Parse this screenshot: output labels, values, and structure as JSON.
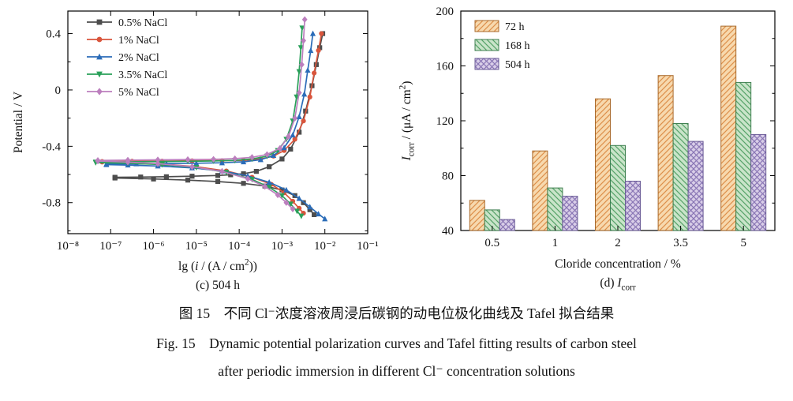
{
  "figure": {
    "caption_zh": "图 15　不同 Cl⁻浓度溶液周浸后碳钢的动电位极化曲线及 Tafel 拟合结果",
    "caption_en_line1": "Fig. 15　Dynamic potential polarization curves and Tafel fitting results of carbon steel",
    "caption_en_line2": "after periodic immersion in different Cl⁻ concentration solutions"
  },
  "chart_data": [
    {
      "id": "polarization",
      "type": "line",
      "title": "(c) 504 h",
      "ylabel": "Potential / V",
      "xlabel_segments": [
        {
          "t": "lg ("
        },
        {
          "t": "i",
          "i": true
        },
        {
          "t": " / (A / cm"
        },
        {
          "t": "2",
          "sup": true
        },
        {
          "t": "))"
        }
      ],
      "x_scale": "log10",
      "x_range": [
        -8,
        -1
      ],
      "y_range": [
        -1.02,
        0.56
      ],
      "x_ticks": [
        {
          "v": -8,
          "label": "10⁻⁸"
        },
        {
          "v": -7,
          "label": "10⁻⁷"
        },
        {
          "v": -6,
          "label": "10⁻⁶"
        },
        {
          "v": -5,
          "label": "10⁻⁵"
        },
        {
          "v": -4,
          "label": "10⁻⁴"
        },
        {
          "v": -3,
          "label": "10⁻³"
        },
        {
          "v": -2,
          "label": "10⁻²"
        },
        {
          "v": -1,
          "label": "10⁻¹"
        }
      ],
      "y_ticks": [
        {
          "v": -0.8,
          "label": "-0.8"
        },
        {
          "v": -0.4,
          "label": "-0.4"
        },
        {
          "v": 0,
          "label": "0"
        },
        {
          "v": 0.4,
          "label": "0.4"
        }
      ],
      "y_minor": [
        -1.0,
        -0.6,
        -0.2,
        0.2
      ],
      "legend_position": "top-left",
      "series": [
        {
          "name": "0.5% NaCl",
          "color": "#4d4d4d",
          "marker": "square",
          "points": [
            [
              -2.25,
              -0.885
            ],
            [
              -2.35,
              -0.85
            ],
            [
              -2.5,
              -0.8
            ],
            [
              -2.7,
              -0.75
            ],
            [
              -3.0,
              -0.71
            ],
            [
              -3.4,
              -0.682
            ],
            [
              -3.9,
              -0.663
            ],
            [
              -4.5,
              -0.65
            ],
            [
              -5.2,
              -0.64
            ],
            [
              -6.0,
              -0.632
            ],
            [
              -6.9,
              -0.625
            ],
            [
              -6.9,
              -0.62
            ],
            [
              -6.3,
              -0.618
            ],
            [
              -5.7,
              -0.616
            ],
            [
              -5.1,
              -0.612
            ],
            [
              -4.5,
              -0.607
            ],
            [
              -4.2,
              -0.602
            ],
            [
              -3.9,
              -0.595
            ],
            [
              -3.6,
              -0.578
            ],
            [
              -3.3,
              -0.545
            ],
            [
              -3.0,
              -0.49
            ],
            [
              -2.8,
              -0.42
            ],
            [
              -2.6,
              -0.3
            ],
            [
              -2.45,
              -0.15
            ],
            [
              -2.3,
              0.03
            ],
            [
              -2.2,
              0.18
            ],
            [
              -2.12,
              0.3
            ],
            [
              -2.05,
              0.4
            ]
          ]
        },
        {
          "name": "1% NaCl",
          "color": "#d9553c",
          "marker": "circle",
          "points": [
            [
              -2.5,
              -0.875
            ],
            [
              -2.6,
              -0.84
            ],
            [
              -2.75,
              -0.79
            ],
            [
              -2.95,
              -0.73
            ],
            [
              -3.25,
              -0.67
            ],
            [
              -3.7,
              -0.62
            ],
            [
              -4.3,
              -0.575
            ],
            [
              -5.0,
              -0.545
            ],
            [
              -5.8,
              -0.525
            ],
            [
              -6.6,
              -0.515
            ],
            [
              -7.2,
              -0.512
            ],
            [
              -7.2,
              -0.508
            ],
            [
              -6.5,
              -0.506
            ],
            [
              -5.8,
              -0.505
            ],
            [
              -5.1,
              -0.503
            ],
            [
              -4.4,
              -0.502
            ],
            [
              -3.9,
              -0.5
            ],
            [
              -3.5,
              -0.49
            ],
            [
              -3.2,
              -0.47
            ],
            [
              -2.95,
              -0.43
            ],
            [
              -2.7,
              -0.35
            ],
            [
              -2.5,
              -0.22
            ],
            [
              -2.35,
              -0.05
            ],
            [
              -2.25,
              0.12
            ],
            [
              -2.15,
              0.28
            ],
            [
              -2.08,
              0.4
            ]
          ]
        },
        {
          "name": "2% NaCl",
          "color": "#2b6cb8",
          "marker": "tri-up",
          "points": [
            [
              -2.0,
              -0.915
            ],
            [
              -2.15,
              -0.88
            ],
            [
              -2.35,
              -0.83
            ],
            [
              -2.6,
              -0.77
            ],
            [
              -2.9,
              -0.71
            ],
            [
              -3.3,
              -0.655
            ],
            [
              -3.8,
              -0.61
            ],
            [
              -4.4,
              -0.575
            ],
            [
              -5.1,
              -0.553
            ],
            [
              -5.9,
              -0.54
            ],
            [
              -6.6,
              -0.533
            ],
            [
              -7.1,
              -0.53
            ],
            [
              -7.1,
              -0.526
            ],
            [
              -6.4,
              -0.524
            ],
            [
              -5.7,
              -0.522
            ],
            [
              -5.0,
              -0.52
            ],
            [
              -4.4,
              -0.517
            ],
            [
              -3.9,
              -0.51
            ],
            [
              -3.5,
              -0.495
            ],
            [
              -3.2,
              -0.465
            ],
            [
              -2.95,
              -0.41
            ],
            [
              -2.75,
              -0.32
            ],
            [
              -2.6,
              -0.19
            ],
            [
              -2.48,
              -0.03
            ],
            [
              -2.4,
              0.14
            ],
            [
              -2.33,
              0.28
            ],
            [
              -2.28,
              0.4
            ]
          ]
        },
        {
          "name": "3.5% NaCl",
          "color": "#2aa05a",
          "marker": "tri-down",
          "points": [
            [
              -2.55,
              -0.895
            ],
            [
              -2.65,
              -0.86
            ],
            [
              -2.8,
              -0.81
            ],
            [
              -3.0,
              -0.75
            ],
            [
              -3.3,
              -0.69
            ],
            [
              -3.7,
              -0.635
            ],
            [
              -4.3,
              -0.585
            ],
            [
              -5.0,
              -0.55
            ],
            [
              -5.8,
              -0.53
            ],
            [
              -6.6,
              -0.52
            ],
            [
              -7.35,
              -0.516
            ],
            [
              -7.35,
              -0.512
            ],
            [
              -6.6,
              -0.51
            ],
            [
              -5.9,
              -0.508
            ],
            [
              -5.2,
              -0.506
            ],
            [
              -4.6,
              -0.504
            ],
            [
              -4.1,
              -0.5
            ],
            [
              -3.7,
              -0.49
            ],
            [
              -3.35,
              -0.47
            ],
            [
              -3.1,
              -0.43
            ],
            [
              -2.9,
              -0.35
            ],
            [
              -2.75,
              -0.22
            ],
            [
              -2.66,
              -0.05
            ],
            [
              -2.6,
              0.13
            ],
            [
              -2.56,
              0.3
            ],
            [
              -2.53,
              0.44
            ]
          ]
        },
        {
          "name": "5% NaCl",
          "color": "#bc7fbe",
          "marker": "diamond",
          "points": [
            [
              -2.75,
              -0.845
            ],
            [
              -2.9,
              -0.8
            ],
            [
              -3.1,
              -0.745
            ],
            [
              -3.4,
              -0.685
            ],
            [
              -3.8,
              -0.63
            ],
            [
              -4.4,
              -0.578
            ],
            [
              -5.1,
              -0.545
            ],
            [
              -5.9,
              -0.523
            ],
            [
              -6.6,
              -0.512
            ],
            [
              -7.3,
              -0.505
            ],
            [
              -7.3,
              -0.5
            ],
            [
              -6.6,
              -0.498
            ],
            [
              -5.9,
              -0.496
            ],
            [
              -5.2,
              -0.494
            ],
            [
              -4.6,
              -0.492
            ],
            [
              -4.1,
              -0.488
            ],
            [
              -3.7,
              -0.478
            ],
            [
              -3.35,
              -0.458
            ],
            [
              -3.05,
              -0.415
            ],
            [
              -2.85,
              -0.33
            ],
            [
              -2.7,
              -0.2
            ],
            [
              -2.6,
              -0.02
            ],
            [
              -2.54,
              0.18
            ],
            [
              -2.5,
              0.35
            ],
            [
              -2.47,
              0.5
            ]
          ]
        }
      ]
    },
    {
      "id": "icorr-bars",
      "type": "bar",
      "title_segments": [
        {
          "t": "(d) "
        },
        {
          "t": "I",
          "i": true
        },
        {
          "t": "corr",
          "sub": true
        }
      ],
      "xlabel": "Cloride concentration / %",
      "ylabel_segments": [
        {
          "t": "I",
          "i": true
        },
        {
          "t": "corr",
          "sub": true
        },
        {
          "t": " / (μA / cm"
        },
        {
          "t": "2",
          "sup": true
        },
        {
          "t": ")"
        }
      ],
      "ylim": [
        40,
        200
      ],
      "y_ticks": [
        40,
        80,
        120,
        160,
        200
      ],
      "y_minor": [
        60,
        100,
        140,
        180
      ],
      "categories": [
        "0.5",
        "1",
        "2",
        "3.5",
        "5"
      ],
      "legend_position": "top-left",
      "series": [
        {
          "name": "72 h",
          "values": [
            62,
            98,
            136,
            153,
            189
          ],
          "fill": "#f7d9ae",
          "hatch": "diag-up",
          "hatch_color": "#dd8f4a",
          "stroke": "#a96a2c"
        },
        {
          "name": "168 h",
          "values": [
            55,
            71,
            102,
            118,
            148
          ],
          "fill": "#c9e4c9",
          "hatch": "diag-down",
          "hatch_color": "#56a268",
          "stroke": "#3f7f50"
        },
        {
          "name": "504 h",
          "values": [
            48,
            65,
            76,
            105,
            110
          ],
          "fill": "#d9cee8",
          "hatch": "cross",
          "hatch_color": "#8a77b5",
          "stroke": "#6a5b96"
        }
      ]
    }
  ]
}
